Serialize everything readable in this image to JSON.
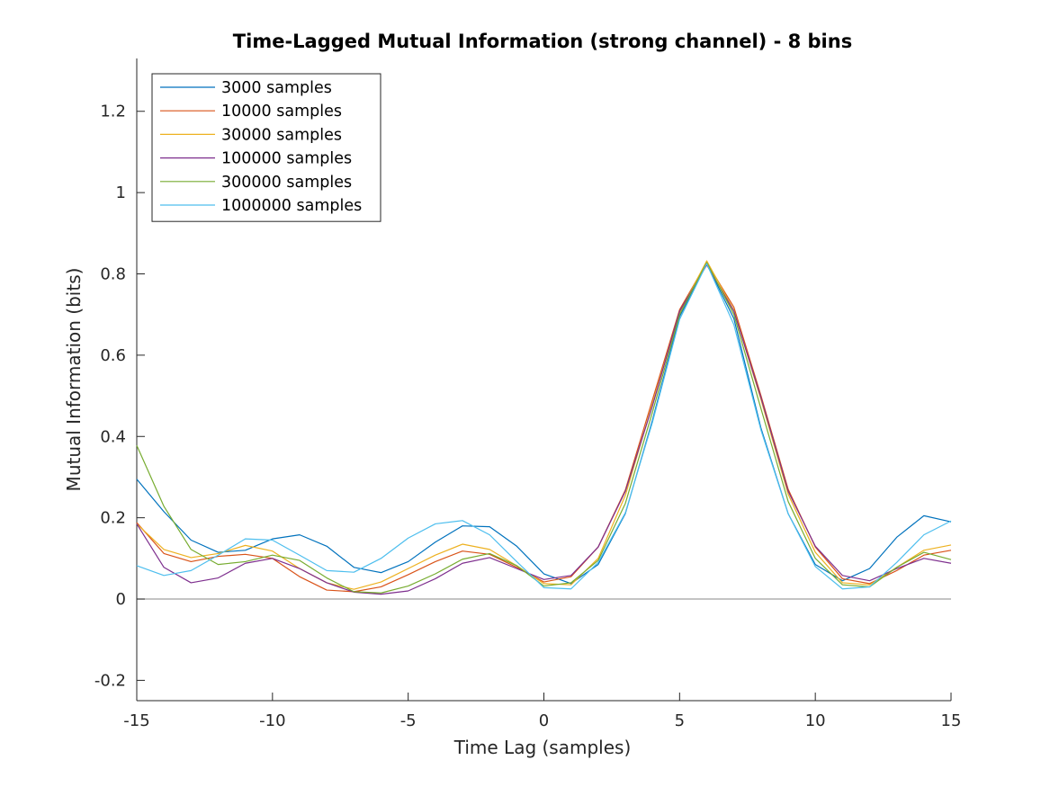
{
  "chart_data": {
    "type": "line",
    "title": "Time-Lagged Mutual Information (strong channel) - 8 bins",
    "xlabel": "Time Lag (samples)",
    "ylabel": "Mutual Information (bits)",
    "xlim": [
      -15,
      15
    ],
    "ylim": [
      -0.25,
      1.33
    ],
    "xticks": [
      -15,
      -10,
      -5,
      0,
      5,
      10,
      15
    ],
    "xtick_labels": [
      "-15",
      "-10",
      "-5",
      "0",
      "5",
      "10",
      "15"
    ],
    "yticks": [
      -0.2,
      0,
      0.2,
      0.4,
      0.6,
      0.8,
      1,
      1.2
    ],
    "ytick_labels": [
      "-0.2",
      "0",
      "0.2",
      "0.4",
      "0.6",
      "0.8",
      "1",
      "1.2"
    ],
    "grid": false,
    "legend_position": "top-left",
    "reference_line": {
      "y": 0,
      "color": "#a0a0a0"
    },
    "x": [
      -15,
      -14,
      -13,
      -12,
      -11,
      -10,
      -9,
      -8,
      -7,
      -6,
      -5,
      -4,
      -3,
      -2,
      -1,
      0,
      1,
      2,
      3,
      4,
      5,
      6,
      7,
      8,
      9,
      10,
      11,
      12,
      13,
      14,
      15
    ],
    "series": [
      {
        "name": "3000 samples",
        "color": "#0072BD",
        "values": [
          0.295,
          0.215,
          0.145,
          0.115,
          0.12,
          0.148,
          0.158,
          0.13,
          0.078,
          0.065,
          0.092,
          0.14,
          0.18,
          0.178,
          0.13,
          0.062,
          0.038,
          0.085,
          0.21,
          0.44,
          0.695,
          0.825,
          0.69,
          0.42,
          0.21,
          0.085,
          0.045,
          0.075,
          0.152,
          0.205,
          0.19
        ]
      },
      {
        "name": "10000 samples",
        "color": "#D95319",
        "values": [
          0.188,
          0.112,
          0.092,
          0.105,
          0.11,
          0.1,
          0.055,
          0.022,
          0.018,
          0.03,
          0.06,
          0.092,
          0.118,
          0.11,
          0.078,
          0.042,
          0.055,
          0.128,
          0.268,
          0.49,
          0.712,
          0.828,
          0.718,
          0.5,
          0.27,
          0.128,
          0.05,
          0.038,
          0.07,
          0.108,
          0.12
        ]
      },
      {
        "name": "30000 samples",
        "color": "#EDB120",
        "values": [
          0.185,
          0.122,
          0.102,
          0.112,
          0.132,
          0.118,
          0.075,
          0.04,
          0.024,
          0.042,
          0.075,
          0.108,
          0.135,
          0.122,
          0.082,
          0.038,
          0.035,
          0.1,
          0.255,
          0.48,
          0.705,
          0.832,
          0.71,
          0.49,
          0.258,
          0.115,
          0.04,
          0.035,
          0.078,
          0.12,
          0.133
        ]
      },
      {
        "name": "100000 samples",
        "color": "#7E2F8E",
        "values": [
          0.185,
          0.078,
          0.04,
          0.052,
          0.088,
          0.1,
          0.075,
          0.04,
          0.017,
          0.012,
          0.02,
          0.05,
          0.088,
          0.102,
          0.075,
          0.048,
          0.058,
          0.128,
          0.265,
          0.475,
          0.708,
          0.822,
          0.708,
          0.495,
          0.265,
          0.13,
          0.058,
          0.045,
          0.075,
          0.1,
          0.088
        ]
      },
      {
        "name": "300000 samples",
        "color": "#77AC30",
        "values": [
          0.378,
          0.228,
          0.122,
          0.085,
          0.092,
          0.108,
          0.095,
          0.052,
          0.018,
          0.015,
          0.032,
          0.062,
          0.098,
          0.112,
          0.082,
          0.032,
          0.04,
          0.095,
          0.235,
          0.46,
          0.7,
          0.828,
          0.7,
          0.468,
          0.24,
          0.1,
          0.035,
          0.03,
          0.078,
          0.115,
          0.097
        ]
      },
      {
        "name": "1000000 samples",
        "color": "#4DBEEE",
        "values": [
          0.082,
          0.058,
          0.07,
          0.108,
          0.148,
          0.145,
          0.108,
          0.07,
          0.066,
          0.1,
          0.15,
          0.185,
          0.193,
          0.158,
          0.092,
          0.028,
          0.025,
          0.09,
          0.212,
          0.435,
          0.688,
          0.825,
          0.675,
          0.415,
          0.21,
          0.08,
          0.025,
          0.03,
          0.09,
          0.158,
          0.192
        ]
      }
    ]
  }
}
